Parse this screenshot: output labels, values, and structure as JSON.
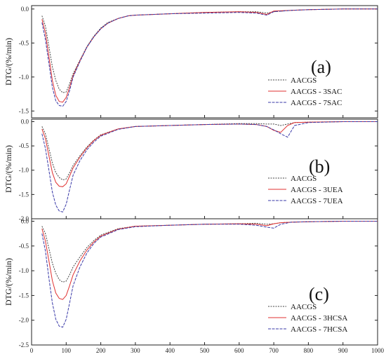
{
  "chart_data": [
    {
      "type": "line",
      "panel_label": "(a)",
      "ylabel": "DTG/(%/min)",
      "xlim": [
        0,
        1000
      ],
      "ylim": [
        -1.6,
        0.05
      ],
      "yticks": [
        0.0,
        -0.5,
        -1.0,
        -1.5
      ],
      "ytick_labels": [
        "0.0",
        "-0.5",
        "-1.0",
        "-1.5"
      ],
      "legend_position": "right",
      "series": [
        {
          "name": "AACGS",
          "color": "#444444",
          "x": [
            30,
            40,
            50,
            60,
            70,
            80,
            90,
            100,
            110,
            120,
            140,
            160,
            180,
            200,
            220,
            250,
            280,
            300,
            400,
            500,
            600,
            650,
            680,
            700,
            750,
            800,
            900,
            1000
          ],
          "y": [
            -0.1,
            -0.25,
            -0.55,
            -0.85,
            -1.05,
            -1.18,
            -1.23,
            -1.22,
            -1.1,
            -0.95,
            -0.75,
            -0.55,
            -0.4,
            -0.28,
            -0.2,
            -0.14,
            -0.1,
            -0.09,
            -0.07,
            -0.05,
            -0.04,
            -0.04,
            -0.06,
            -0.04,
            -0.02,
            -0.01,
            0.0,
            0.0
          ]
        },
        {
          "name": "AACGS - 3SAC",
          "color": "#e03030",
          "x": [
            30,
            40,
            50,
            60,
            70,
            80,
            90,
            100,
            110,
            120,
            140,
            160,
            180,
            200,
            220,
            250,
            280,
            300,
            400,
            500,
            600,
            650,
            680,
            700,
            750,
            800,
            900,
            1000
          ],
          "y": [
            -0.15,
            -0.35,
            -0.7,
            -1.05,
            -1.27,
            -1.36,
            -1.37,
            -1.3,
            -1.15,
            -0.98,
            -0.76,
            -0.56,
            -0.41,
            -0.29,
            -0.21,
            -0.14,
            -0.1,
            -0.09,
            -0.07,
            -0.05,
            -0.04,
            -0.05,
            -0.08,
            -0.03,
            -0.02,
            -0.01,
            0.0,
            0.0
          ]
        },
        {
          "name": "AACGS - 7SAC",
          "color": "#3a3aa8",
          "x": [
            30,
            40,
            50,
            60,
            70,
            80,
            90,
            100,
            110,
            120,
            140,
            160,
            180,
            200,
            220,
            250,
            280,
            300,
            400,
            500,
            600,
            650,
            680,
            700,
            750,
            800,
            900,
            1000
          ],
          "y": [
            -0.2,
            -0.45,
            -0.8,
            -1.15,
            -1.35,
            -1.42,
            -1.43,
            -1.36,
            -1.2,
            -1.0,
            -0.77,
            -0.56,
            -0.41,
            -0.29,
            -0.21,
            -0.14,
            -0.1,
            -0.09,
            -0.07,
            -0.06,
            -0.05,
            -0.06,
            -0.09,
            -0.04,
            -0.02,
            -0.01,
            0.0,
            0.0
          ]
        }
      ]
    },
    {
      "type": "line",
      "panel_label": "(b)",
      "ylabel": "DTG/(%/min)",
      "xlim": [
        0,
        1000
      ],
      "ylim": [
        -2.0,
        0.05
      ],
      "yticks": [
        0.0,
        -0.5,
        -1.0,
        -1.5,
        -2.0
      ],
      "ytick_labels": [
        "0.0",
        "-0.5",
        "-1.0",
        "-1.5",
        "-2.0"
      ],
      "legend_position": "right",
      "series": [
        {
          "name": "AACGS",
          "color": "#444444",
          "x": [
            30,
            40,
            50,
            60,
            70,
            80,
            90,
            100,
            110,
            120,
            140,
            160,
            180,
            200,
            250,
            300,
            400,
            500,
            600,
            650,
            680,
            700,
            720,
            740,
            760,
            800,
            900,
            1000
          ],
          "y": [
            -0.1,
            -0.25,
            -0.55,
            -0.85,
            -1.05,
            -1.15,
            -1.2,
            -1.18,
            -1.05,
            -0.9,
            -0.7,
            -0.52,
            -0.38,
            -0.27,
            -0.15,
            -0.1,
            -0.08,
            -0.06,
            -0.04,
            -0.04,
            -0.05,
            -0.05,
            -0.08,
            -0.05,
            -0.02,
            -0.01,
            0.0,
            0.0
          ]
        },
        {
          "name": "AACGS - 3UEA",
          "color": "#e03030",
          "x": [
            30,
            40,
            50,
            60,
            70,
            80,
            90,
            100,
            110,
            120,
            140,
            160,
            180,
            200,
            250,
            300,
            400,
            500,
            600,
            650,
            680,
            700,
            720,
            740,
            760,
            800,
            900,
            1000
          ],
          "y": [
            -0.15,
            -0.35,
            -0.7,
            -1.05,
            -1.25,
            -1.33,
            -1.34,
            -1.28,
            -1.12,
            -0.95,
            -0.73,
            -0.54,
            -0.39,
            -0.28,
            -0.15,
            -0.1,
            -0.08,
            -0.06,
            -0.05,
            -0.06,
            -0.1,
            -0.18,
            -0.22,
            -0.08,
            -0.02,
            -0.01,
            0.0,
            0.0
          ]
        },
        {
          "name": "AACGS - 7UEA",
          "color": "#3a3aa8",
          "x": [
            30,
            40,
            50,
            60,
            70,
            80,
            90,
            100,
            110,
            120,
            140,
            160,
            180,
            200,
            250,
            300,
            400,
            500,
            600,
            650,
            680,
            700,
            720,
            740,
            760,
            800,
            900,
            1000
          ],
          "y": [
            -0.25,
            -0.55,
            -1.0,
            -1.45,
            -1.72,
            -1.84,
            -1.86,
            -1.7,
            -1.4,
            -1.1,
            -0.8,
            -0.58,
            -0.42,
            -0.3,
            -0.16,
            -0.1,
            -0.08,
            -0.06,
            -0.05,
            -0.06,
            -0.1,
            -0.17,
            -0.25,
            -0.32,
            -0.08,
            -0.02,
            0.0,
            0.0
          ]
        }
      ]
    },
    {
      "type": "line",
      "panel_label": "(c)",
      "ylabel": "DTG/(%/min)",
      "xlim": [
        0,
        1000
      ],
      "ylim": [
        -2.5,
        0.05
      ],
      "yticks": [
        0.0,
        -0.5,
        -1.0,
        -1.5,
        -2.0,
        -2.5
      ],
      "ytick_labels": [
        "0.0",
        "-0.5",
        "-1.0",
        "-1.5",
        "-2.0",
        "-2.5"
      ],
      "xticks": [
        0,
        100,
        200,
        300,
        400,
        500,
        600,
        700,
        800,
        900,
        1000
      ],
      "xtick_labels": [
        "0",
        "100",
        "200",
        "300",
        "400",
        "500",
        "600",
        "700",
        "800",
        "900",
        "1000"
      ],
      "legend_position": "right",
      "series": [
        {
          "name": "AACGS",
          "color": "#444444",
          "x": [
            30,
            40,
            50,
            60,
            70,
            80,
            90,
            100,
            110,
            120,
            140,
            160,
            180,
            200,
            250,
            300,
            400,
            500,
            600,
            650,
            680,
            700,
            720,
            750,
            800,
            900,
            1000
          ],
          "y": [
            -0.1,
            -0.25,
            -0.55,
            -0.85,
            -1.05,
            -1.18,
            -1.23,
            -1.21,
            -1.08,
            -0.92,
            -0.72,
            -0.53,
            -0.39,
            -0.28,
            -0.15,
            -0.1,
            -0.08,
            -0.06,
            -0.05,
            -0.04,
            -0.06,
            -0.05,
            -0.03,
            -0.02,
            -0.01,
            0.0,
            0.0
          ]
        },
        {
          "name": "AACGS - 3HCSA",
          "color": "#e03030",
          "x": [
            30,
            40,
            50,
            60,
            70,
            80,
            90,
            100,
            110,
            120,
            140,
            160,
            180,
            200,
            250,
            300,
            400,
            500,
            600,
            650,
            680,
            700,
            720,
            750,
            800,
            900,
            1000
          ],
          "y": [
            -0.15,
            -0.4,
            -0.8,
            -1.2,
            -1.45,
            -1.56,
            -1.58,
            -1.5,
            -1.3,
            -1.08,
            -0.8,
            -0.58,
            -0.42,
            -0.3,
            -0.16,
            -0.1,
            -0.08,
            -0.06,
            -0.05,
            -0.06,
            -0.09,
            -0.05,
            -0.03,
            -0.02,
            -0.01,
            0.0,
            0.0
          ]
        },
        {
          "name": "AACGS - 7HCSA",
          "color": "#3a3aa8",
          "x": [
            30,
            40,
            50,
            60,
            70,
            80,
            90,
            100,
            110,
            120,
            140,
            160,
            180,
            200,
            250,
            300,
            400,
            500,
            600,
            650,
            680,
            700,
            720,
            750,
            800,
            900,
            1000
          ],
          "y": [
            -0.25,
            -0.6,
            -1.15,
            -1.65,
            -1.98,
            -2.12,
            -2.14,
            -1.98,
            -1.65,
            -1.3,
            -0.92,
            -0.64,
            -0.45,
            -0.32,
            -0.17,
            -0.11,
            -0.08,
            -0.06,
            -0.06,
            -0.08,
            -0.12,
            -0.14,
            -0.06,
            -0.02,
            -0.01,
            0.0,
            0.0
          ]
        }
      ]
    }
  ]
}
